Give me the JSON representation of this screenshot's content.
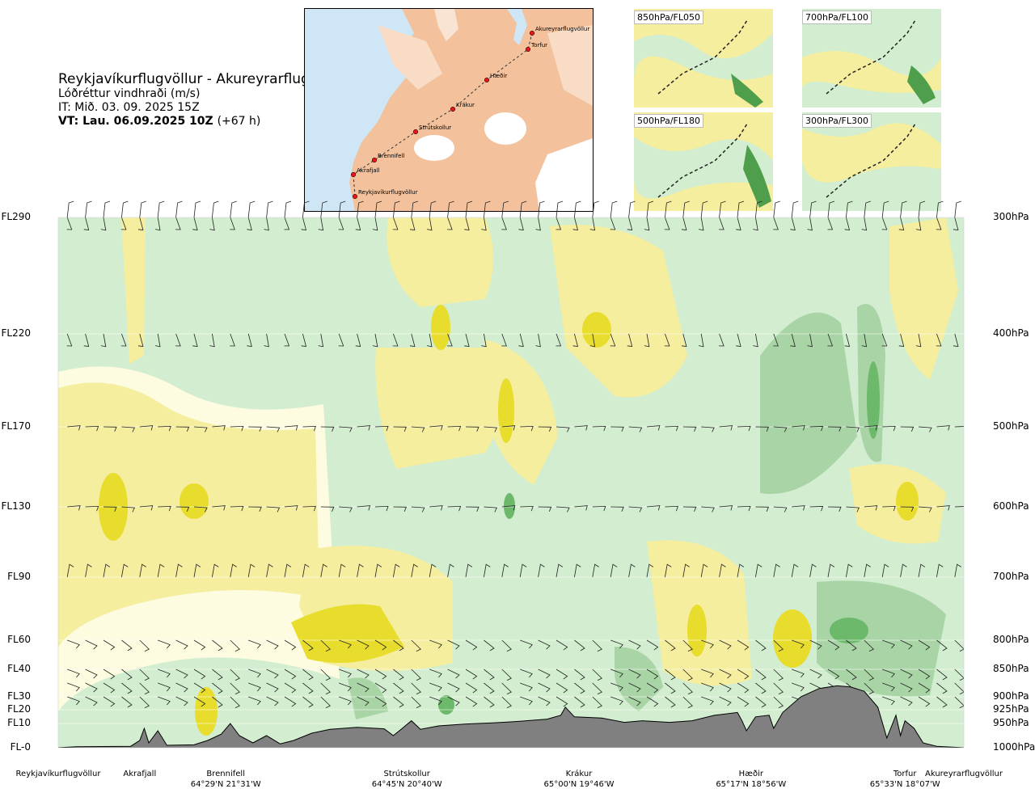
{
  "header": {
    "route": "Reykjavíkurflugvöllur - Akureyrarflugvöllur",
    "quantity": "Lóðréttur vindhraði (m/s)",
    "issue_time": "IT: Mið. 03. 09. 2025 15Z",
    "valid_time": "VT: Lau. 06.09.2025 10Z",
    "lead_time": "(+67 h)"
  },
  "map": {
    "waypoints": [
      {
        "name": "Akureyrarflugvöllur"
      },
      {
        "name": "Torfur"
      },
      {
        "name": "Hæðir"
      },
      {
        "name": "Krákur"
      },
      {
        "name": "Strútskollur"
      },
      {
        "name": "Brennifell"
      },
      {
        "name": "Akrafjall"
      },
      {
        "name": "Reykjavíkurflugvöllur"
      }
    ],
    "colors": {
      "land": "#f3c19c",
      "sea": "#cfe6f7",
      "glacier": "#ffffff",
      "route_point": "#e8161b"
    }
  },
  "mini_maps": [
    {
      "label": "850hPa/FL050"
    },
    {
      "label": "700hPa/FL100"
    },
    {
      "label": "500hPa/FL180"
    },
    {
      "label": "300hPa/FL300"
    }
  ],
  "chart_data": {
    "type": "heatmap",
    "title": "Lóðréttur vindhraði (m/s)",
    "left_axis_flight_levels": [
      "FL290",
      "FL220",
      "FL170",
      "FL130",
      "FL90",
      "FL60",
      "FL40",
      "FL30",
      "FL20",
      "FL10",
      "FL-0"
    ],
    "right_axis_pressure": [
      "300hPa",
      "400hPa",
      "500hPa",
      "600hPa",
      "700hPa",
      "800hPa",
      "850hPa",
      "900hPa",
      "925hPa",
      "950hPa",
      "1000hPa"
    ],
    "pressure_levels_hpa": [
      300,
      400,
      500,
      600,
      700,
      800,
      850,
      900,
      925,
      950,
      1000
    ],
    "x_locations": [
      {
        "name": "Reykjavíkurflugvöllur",
        "coord": "",
        "dist": 0.0
      },
      {
        "name": "Akrafjall",
        "coord": "",
        "dist": 0.09
      },
      {
        "name": "Brennifell",
        "coord": "64°29'N 21°31'W",
        "dist": 0.185
      },
      {
        "name": "Strútskollur",
        "coord": "64°45'N 20°40'W",
        "dist": 0.385
      },
      {
        "name": "Krákur",
        "coord": "65°00'N 19°46'W",
        "dist": 0.575
      },
      {
        "name": "Hæðir",
        "coord": "65°17'N 18°56'W",
        "dist": 0.765
      },
      {
        "name": "Torfur",
        "coord": "65°33'N 18°07'W",
        "dist": 0.935
      },
      {
        "name": "Akureyrarflugvöllur",
        "coord": "",
        "dist": 0.995
      }
    ],
    "color_classes": {
      "strong_up": "#e8dc2c",
      "moderate_up": "#f4ee9e",
      "weak_up": "#fdfbe0",
      "weak_down": "#d2edd0",
      "moderate_down": "#a9d4a6",
      "strong_down": "#6db96b",
      "terrain": "#808080"
    },
    "terrain_profile_hpa": [
      [
        0.0,
        1000
      ],
      [
        0.02,
        998
      ],
      [
        0.08,
        997
      ],
      [
        0.09,
        985
      ],
      [
        0.095,
        960
      ],
      [
        0.1,
        990
      ],
      [
        0.11,
        965
      ],
      [
        0.12,
        995
      ],
      [
        0.15,
        994
      ],
      [
        0.165,
        985
      ],
      [
        0.18,
        972
      ],
      [
        0.19,
        950
      ],
      [
        0.2,
        975
      ],
      [
        0.215,
        990
      ],
      [
        0.23,
        975
      ],
      [
        0.245,
        992
      ],
      [
        0.26,
        985
      ],
      [
        0.28,
        970
      ],
      [
        0.3,
        962
      ],
      [
        0.33,
        958
      ],
      [
        0.36,
        961
      ],
      [
        0.37,
        975
      ],
      [
        0.38,
        960
      ],
      [
        0.39,
        945
      ],
      [
        0.4,
        962
      ],
      [
        0.42,
        955
      ],
      [
        0.45,
        951
      ],
      [
        0.48,
        949
      ],
      [
        0.51,
        946
      ],
      [
        0.54,
        942
      ],
      [
        0.555,
        935
      ],
      [
        0.56,
        920
      ],
      [
        0.57,
        938
      ],
      [
        0.6,
        940
      ],
      [
        0.625,
        948
      ],
      [
        0.645,
        945
      ],
      [
        0.675,
        948
      ],
      [
        0.7,
        945
      ],
      [
        0.725,
        935
      ],
      [
        0.75,
        930
      ],
      [
        0.755,
        945
      ],
      [
        0.76,
        965
      ],
      [
        0.77,
        938
      ],
      [
        0.785,
        935
      ],
      [
        0.79,
        960
      ],
      [
        0.8,
        930
      ],
      [
        0.82,
        900
      ],
      [
        0.84,
        885
      ],
      [
        0.86,
        880
      ],
      [
        0.875,
        882
      ],
      [
        0.89,
        890
      ],
      [
        0.905,
        920
      ],
      [
        0.915,
        980
      ],
      [
        0.925,
        935
      ],
      [
        0.93,
        975
      ],
      [
        0.935,
        945
      ],
      [
        0.945,
        960
      ],
      [
        0.955,
        990
      ],
      [
        0.97,
        997
      ],
      [
        1.0,
        1000
      ]
    ],
    "wind_barb_levels_hpa": [
      300,
      400,
      500,
      600,
      700,
      800,
      850,
      875,
      900
    ]
  }
}
